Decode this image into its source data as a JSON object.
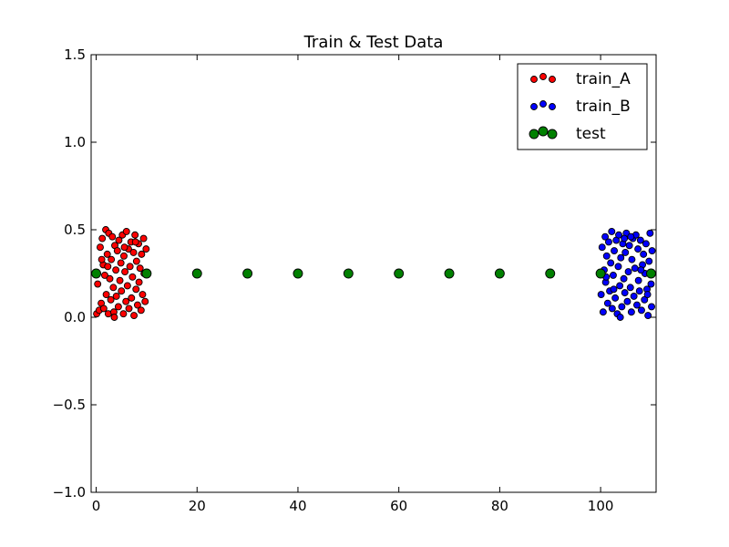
{
  "chart_data": {
    "type": "scatter",
    "title": "Train & Test Data",
    "xlabel": "",
    "ylabel": "",
    "xlim": [
      -1,
      111
    ],
    "ylim": [
      -1.0,
      1.5
    ],
    "xticks": [
      0,
      20,
      40,
      60,
      80,
      100
    ],
    "xtick_labels": [
      "0",
      "20",
      "40",
      "60",
      "80",
      "100"
    ],
    "yticks": [
      -1.0,
      -0.5,
      0.0,
      0.5,
      1.0,
      1.5
    ],
    "ytick_labels": [
      "−1.0",
      "−0.5",
      "0.0",
      "0.5",
      "1.0",
      "1.5"
    ],
    "grid": false,
    "legend_position": "top-right",
    "series": [
      {
        "name": "train_A",
        "color": "#ff0000",
        "marker_size": "small",
        "points": [
          [
            0.1,
            0.02
          ],
          [
            0.3,
            0.19
          ],
          [
            0.6,
            0.04
          ],
          [
            0.8,
            0.4
          ],
          [
            1.0,
            0.08
          ],
          [
            1.2,
            0.45
          ],
          [
            1.4,
            0.3
          ],
          [
            1.5,
            0.05
          ],
          [
            1.7,
            0.24
          ],
          [
            1.9,
            0.5
          ],
          [
            2.0,
            0.13
          ],
          [
            2.2,
            0.36
          ],
          [
            2.4,
            0.02
          ],
          [
            2.5,
            0.48
          ],
          [
            2.7,
            0.22
          ],
          [
            2.9,
            0.1
          ],
          [
            3.0,
            0.33
          ],
          [
            3.2,
            0.46
          ],
          [
            3.4,
            0.17
          ],
          [
            3.5,
            0.03
          ],
          [
            3.7,
            0.41
          ],
          [
            3.9,
            0.27
          ],
          [
            4.0,
            0.12
          ],
          [
            4.2,
            0.38
          ],
          [
            4.4,
            0.06
          ],
          [
            4.5,
            0.44
          ],
          [
            4.7,
            0.21
          ],
          [
            4.9,
            0.31
          ],
          [
            5.0,
            0.15
          ],
          [
            5.2,
            0.47
          ],
          [
            5.4,
            0.02
          ],
          [
            5.5,
            0.35
          ],
          [
            5.7,
            0.26
          ],
          [
            5.9,
            0.09
          ],
          [
            6.0,
            0.49
          ],
          [
            6.2,
            0.18
          ],
          [
            6.4,
            0.39
          ],
          [
            6.5,
            0.05
          ],
          [
            6.7,
            0.29
          ],
          [
            6.9,
            0.43
          ],
          [
            7.0,
            0.11
          ],
          [
            7.2,
            0.23
          ],
          [
            7.4,
            0.37
          ],
          [
            7.5,
            0.01
          ],
          [
            7.7,
            0.47
          ],
          [
            7.9,
            0.16
          ],
          [
            8.0,
            0.32
          ],
          [
            8.2,
            0.07
          ],
          [
            8.4,
            0.42
          ],
          [
            8.5,
            0.2
          ],
          [
            8.7,
            0.28
          ],
          [
            8.9,
            0.04
          ],
          [
            9.0,
            0.36
          ],
          [
            9.2,
            0.13
          ],
          [
            9.4,
            0.45
          ],
          [
            9.5,
            0.25
          ],
          [
            9.7,
            0.09
          ],
          [
            9.9,
            0.39
          ],
          [
            1.1,
            0.33
          ],
          [
            3.6,
            0.0
          ],
          [
            5.6,
            0.4
          ],
          [
            7.8,
            0.43
          ],
          [
            2.3,
            0.29
          ]
        ]
      },
      {
        "name": "train_B",
        "color": "#0000ff",
        "marker_size": "small",
        "points": [
          [
            100.1,
            0.13
          ],
          [
            100.3,
            0.4
          ],
          [
            100.5,
            0.03
          ],
          [
            100.7,
            0.27
          ],
          [
            100.9,
            0.46
          ],
          [
            101.0,
            0.2
          ],
          [
            101.2,
            0.35
          ],
          [
            101.4,
            0.08
          ],
          [
            101.6,
            0.43
          ],
          [
            101.8,
            0.15
          ],
          [
            102.0,
            0.31
          ],
          [
            102.2,
            0.49
          ],
          [
            102.3,
            0.05
          ],
          [
            102.5,
            0.24
          ],
          [
            102.7,
            0.38
          ],
          [
            102.9,
            0.11
          ],
          [
            103.1,
            0.44
          ],
          [
            103.3,
            0.02
          ],
          [
            103.5,
            0.29
          ],
          [
            103.6,
            0.47
          ],
          [
            103.8,
            0.18
          ],
          [
            104.0,
            0.34
          ],
          [
            104.2,
            0.06
          ],
          [
            104.4,
            0.42
          ],
          [
            104.6,
            0.22
          ],
          [
            104.8,
            0.14
          ],
          [
            104.9,
            0.37
          ],
          [
            105.1,
            0.48
          ],
          [
            105.3,
            0.09
          ],
          [
            105.5,
            0.26
          ],
          [
            105.7,
            0.41
          ],
          [
            105.9,
            0.17
          ],
          [
            106.1,
            0.03
          ],
          [
            106.2,
            0.33
          ],
          [
            106.4,
            0.45
          ],
          [
            106.6,
            0.12
          ],
          [
            106.8,
            0.28
          ],
          [
            107.0,
            0.47
          ],
          [
            107.2,
            0.07
          ],
          [
            107.4,
            0.39
          ],
          [
            107.5,
            0.21
          ],
          [
            107.7,
            0.15
          ],
          [
            107.9,
            0.44
          ],
          [
            108.1,
            0.04
          ],
          [
            108.3,
            0.3
          ],
          [
            108.5,
            0.36
          ],
          [
            108.7,
            0.1
          ],
          [
            108.8,
            0.25
          ],
          [
            109.0,
            0.42
          ],
          [
            109.2,
            0.16
          ],
          [
            109.4,
            0.01
          ],
          [
            109.6,
            0.32
          ],
          [
            109.8,
            0.48
          ],
          [
            110.0,
            0.19
          ],
          [
            110.1,
            0.06
          ],
          [
            110.2,
            0.38
          ],
          [
            101.1,
            0.23
          ],
          [
            103.9,
            0.0
          ],
          [
            106.0,
            0.46
          ],
          [
            108.0,
            0.27
          ],
          [
            109.3,
            0.13
          ],
          [
            102.6,
            0.16
          ],
          [
            104.7,
            0.45
          ]
        ]
      },
      {
        "name": "test",
        "color": "#008000",
        "marker_size": "large",
        "points": [
          [
            0,
            0.25
          ],
          [
            10,
            0.25
          ],
          [
            20,
            0.25
          ],
          [
            30,
            0.25
          ],
          [
            40,
            0.25
          ],
          [
            50,
            0.25
          ],
          [
            60,
            0.25
          ],
          [
            70,
            0.25
          ],
          [
            80,
            0.25
          ],
          [
            90,
            0.25
          ],
          [
            100,
            0.25
          ],
          [
            110,
            0.25
          ]
        ]
      }
    ]
  }
}
